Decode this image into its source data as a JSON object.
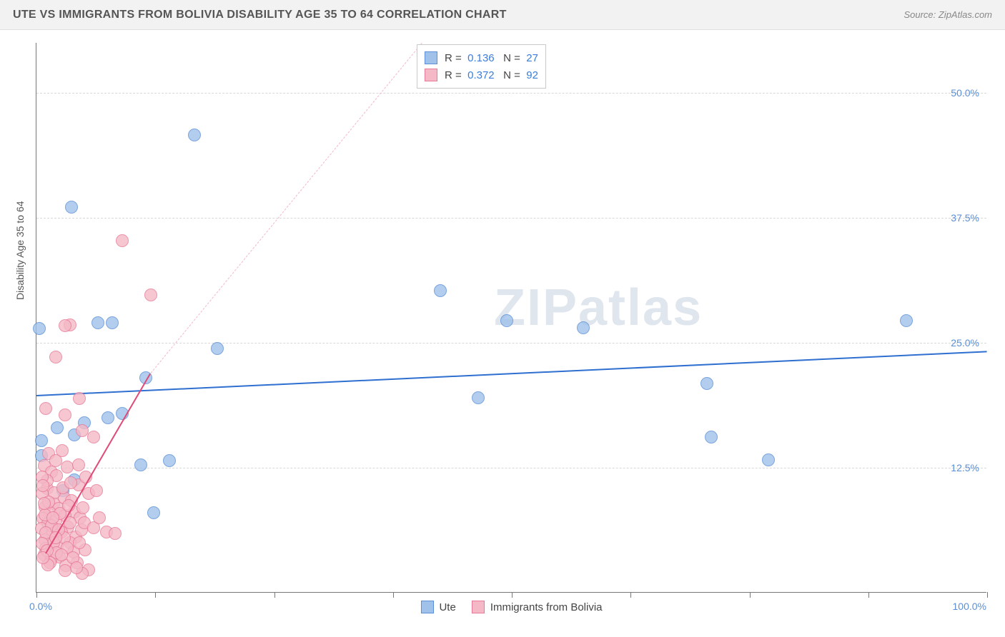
{
  "title": "UTE VS IMMIGRANTS FROM BOLIVIA DISABILITY AGE 35 TO 64 CORRELATION CHART",
  "source": "Source: ZipAtlas.com",
  "watermark": "ZIPatlas",
  "chart": {
    "type": "scatter",
    "ylabel": "Disability Age 35 to 64",
    "xlim": [
      0,
      100
    ],
    "ylim": [
      0,
      55
    ],
    "xtick_labels": {
      "min": "0.0%",
      "max": "100.0%"
    },
    "xtick_positions": [
      0,
      12.5,
      25,
      37.5,
      50,
      62.5,
      75,
      87.5,
      100
    ],
    "ytick_labels": [
      "12.5%",
      "25.0%",
      "37.5%",
      "50.0%"
    ],
    "ytick_positions": [
      12.5,
      25,
      37.5,
      50
    ],
    "background_color": "#ffffff",
    "grid_color": "#d8d8d8",
    "axis_color": "#777777",
    "label_fontsize": 14,
    "tick_color": "#5b8fd6",
    "point_radius": 9,
    "point_border_width": 1.5,
    "point_fill_opacity": 0.35,
    "series": [
      {
        "name": "Ute",
        "color_fill": "#9FC1EA",
        "color_stroke": "#5B8FD6",
        "R": "0.136",
        "N": "27",
        "trend": {
          "x1": 0,
          "y1": 19.8,
          "x2": 100,
          "y2": 24.2,
          "color": "#2E6FD0",
          "width": 2.5,
          "dash": "solid"
        },
        "points": [
          [
            0.3,
            26.4
          ],
          [
            0.5,
            13.7
          ],
          [
            3.7,
            38.6
          ],
          [
            16.6,
            45.8
          ],
          [
            11.5,
            21.5
          ],
          [
            9.0,
            17.9
          ],
          [
            19.0,
            24.4
          ],
          [
            42.5,
            30.2
          ],
          [
            49.5,
            27.2
          ],
          [
            57.5,
            26.5
          ],
          [
            46.5,
            19.5
          ],
          [
            70.5,
            20.9
          ],
          [
            71.0,
            15.6
          ],
          [
            77.0,
            13.3
          ],
          [
            91.5,
            27.2
          ],
          [
            6.5,
            27.0
          ],
          [
            8.0,
            27.0
          ],
          [
            7.5,
            17.5
          ],
          [
            11.0,
            12.8
          ],
          [
            4.0,
            15.8
          ],
          [
            5.0,
            17.0
          ],
          [
            14.0,
            13.2
          ],
          [
            2.8,
            10.2
          ],
          [
            4.0,
            11.3
          ],
          [
            12.3,
            8.0
          ],
          [
            0.5,
            15.2
          ],
          [
            2.2,
            16.5
          ]
        ]
      },
      {
        "name": "Immigrants from Bolivia",
        "color_fill": "#F4B8C6",
        "color_stroke": "#E77A97",
        "R": "0.372",
        "N": "92",
        "trend_solid": {
          "x1": 1.0,
          "y1": 4.0,
          "x2": 12.0,
          "y2": 22.0,
          "color": "#E04A76",
          "width": 2.5,
          "dash": "solid"
        },
        "trend_dash": {
          "x1": 12.0,
          "y1": 22.0,
          "x2": 40.5,
          "y2": 55.0,
          "color": "#F4B8C6",
          "width": 1.5,
          "dash": "dashed"
        },
        "points": [
          [
            9.0,
            35.2
          ],
          [
            2.0,
            23.6
          ],
          [
            3.5,
            26.8
          ],
          [
            12.0,
            29.8
          ],
          [
            3.0,
            26.7
          ],
          [
            4.5,
            19.4
          ],
          [
            3.0,
            17.8
          ],
          [
            1.0,
            18.4
          ],
          [
            4.8,
            16.2
          ],
          [
            6.0,
            15.6
          ],
          [
            2.7,
            14.2
          ],
          [
            1.3,
            13.9
          ],
          [
            0.8,
            12.7
          ],
          [
            1.6,
            12.1
          ],
          [
            3.2,
            12.6
          ],
          [
            2.1,
            11.7
          ],
          [
            4.4,
            10.8
          ],
          [
            1.1,
            10.4
          ],
          [
            0.6,
            9.9
          ],
          [
            2.9,
            9.5
          ],
          [
            5.5,
            9.9
          ],
          [
            3.7,
            9.2
          ],
          [
            1.8,
            8.9
          ],
          [
            0.9,
            8.6
          ],
          [
            2.3,
            8.4
          ],
          [
            4.0,
            8.1
          ],
          [
            1.4,
            8.0
          ],
          [
            3.0,
            7.7
          ],
          [
            0.7,
            7.4
          ],
          [
            2.0,
            7.2
          ],
          [
            4.6,
            7.5
          ],
          [
            1.2,
            6.9
          ],
          [
            3.3,
            6.6
          ],
          [
            0.5,
            6.4
          ],
          [
            2.6,
            6.1
          ],
          [
            1.7,
            5.9
          ],
          [
            4.1,
            5.6
          ],
          [
            0.9,
            5.3
          ],
          [
            3.5,
            5.0
          ],
          [
            2.2,
            4.7
          ],
          [
            1.0,
            4.4
          ],
          [
            5.1,
            4.3
          ],
          [
            3.9,
            4.1
          ],
          [
            0.8,
            3.8
          ],
          [
            2.4,
            3.6
          ],
          [
            1.5,
            3.3
          ],
          [
            4.3,
            3.0
          ],
          [
            3.1,
            2.7
          ],
          [
            5.5,
            2.3
          ],
          [
            4.8,
            1.9
          ],
          [
            1.9,
            10.0
          ],
          [
            2.8,
            10.5
          ],
          [
            1.1,
            11.2
          ],
          [
            0.6,
            11.6
          ],
          [
            3.6,
            11.0
          ],
          [
            5.2,
            11.6
          ],
          [
            6.3,
            10.2
          ],
          [
            4.4,
            12.8
          ],
          [
            2.0,
            13.2
          ],
          [
            1.3,
            9.1
          ],
          [
            0.7,
            10.7
          ],
          [
            2.5,
            7.9
          ],
          [
            3.4,
            8.7
          ],
          [
            1.6,
            6.7
          ],
          [
            0.9,
            7.8
          ],
          [
            2.9,
            5.5
          ],
          [
            1.8,
            5.0
          ],
          [
            3.2,
            4.5
          ],
          [
            4.7,
            6.3
          ],
          [
            1.0,
            6.0
          ],
          [
            2.1,
            4.0
          ],
          [
            0.6,
            4.9
          ],
          [
            3.8,
            3.5
          ],
          [
            1.4,
            3.0
          ],
          [
            2.6,
            3.8
          ],
          [
            4.2,
            2.5
          ],
          [
            3.0,
            2.2
          ],
          [
            1.2,
            2.8
          ],
          [
            5.0,
            7.0
          ],
          [
            6.0,
            6.5
          ],
          [
            4.5,
            5.0
          ],
          [
            2.3,
            6.3
          ],
          [
            1.7,
            7.5
          ],
          [
            0.8,
            8.9
          ],
          [
            3.5,
            7.0
          ],
          [
            4.9,
            8.5
          ],
          [
            6.6,
            7.5
          ],
          [
            7.4,
            6.1
          ],
          [
            8.3,
            5.9
          ],
          [
            2.0,
            5.5
          ],
          [
            1.1,
            4.2
          ],
          [
            0.7,
            3.5
          ]
        ]
      }
    ],
    "legend_bottom": [
      {
        "label": "Ute",
        "fill": "#9FC1EA",
        "stroke": "#5B8FD6"
      },
      {
        "label": "Immigrants from Bolivia",
        "fill": "#F4B8C6",
        "stroke": "#E77A97"
      }
    ]
  }
}
